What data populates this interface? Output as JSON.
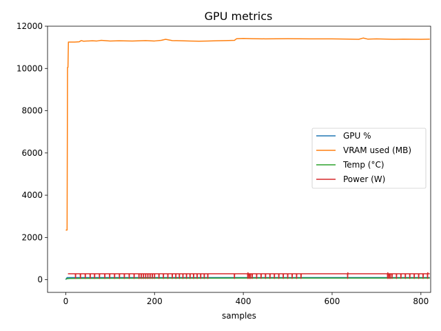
{
  "chart_data": {
    "type": "line",
    "title": "GPU metrics",
    "xlabel": "samples",
    "ylabel": "",
    "xlim": [
      -41,
      822
    ],
    "ylim": [
      -600,
      12000
    ],
    "xticks": [
      0,
      200,
      400,
      600,
      800
    ],
    "yticks": [
      0,
      2000,
      4000,
      6000,
      8000,
      10000,
      12000
    ],
    "grid": false,
    "legend_position": "center-right",
    "series": [
      {
        "name": "GPU %",
        "color": "#1f77b4",
        "points": [
          [
            0,
            0
          ],
          [
            3,
            100
          ],
          [
            820,
            100
          ]
        ]
      },
      {
        "name": "VRAM used (MB)",
        "color": "#ff7f0e",
        "points": [
          [
            0,
            2350
          ],
          [
            3,
            2350
          ],
          [
            4,
            10050
          ],
          [
            5,
            10050
          ],
          [
            6,
            11250
          ],
          [
            20,
            11250
          ],
          [
            30,
            11260
          ],
          [
            35,
            11320
          ],
          [
            40,
            11290
          ],
          [
            60,
            11310
          ],
          [
            70,
            11300
          ],
          [
            80,
            11330
          ],
          [
            100,
            11300
          ],
          [
            120,
            11310
          ],
          [
            150,
            11300
          ],
          [
            180,
            11320
          ],
          [
            200,
            11300
          ],
          [
            215,
            11330
          ],
          [
            225,
            11380
          ],
          [
            240,
            11320
          ],
          [
            260,
            11310
          ],
          [
            280,
            11300
          ],
          [
            300,
            11290
          ],
          [
            320,
            11300
          ],
          [
            340,
            11310
          ],
          [
            360,
            11320
          ],
          [
            380,
            11330
          ],
          [
            385,
            11410
          ],
          [
            400,
            11420
          ],
          [
            420,
            11410
          ],
          [
            450,
            11400
          ],
          [
            500,
            11410
          ],
          [
            550,
            11400
          ],
          [
            600,
            11400
          ],
          [
            640,
            11390
          ],
          [
            660,
            11380
          ],
          [
            670,
            11440
          ],
          [
            680,
            11390
          ],
          [
            700,
            11400
          ],
          [
            740,
            11380
          ],
          [
            760,
            11390
          ],
          [
            800,
            11380
          ],
          [
            820,
            11390
          ]
        ]
      },
      {
        "name": "Temp (°C)",
        "color": "#2ca02c",
        "points": [
          [
            0,
            40
          ],
          [
            10,
            60
          ],
          [
            40,
            65
          ],
          [
            100,
            70
          ],
          [
            200,
            72
          ],
          [
            300,
            75
          ],
          [
            400,
            78
          ],
          [
            500,
            78
          ],
          [
            600,
            76
          ],
          [
            700,
            77
          ],
          [
            820,
            78
          ]
        ]
      },
      {
        "name": "Power (W)",
        "color": "#d62728",
        "base": 280,
        "dip": 60,
        "start": 5,
        "end": 820,
        "dips_at": [
          22,
          33,
          44,
          55,
          65,
          76,
          88,
          99,
          110,
          121,
          132,
          143,
          154,
          165,
          170,
          175,
          180,
          185,
          190,
          195,
          200,
          210,
          220,
          230,
          240,
          248,
          256,
          264,
          272,
          280,
          288,
          296,
          304,
          312,
          320,
          380,
          410,
          413,
          416,
          420,
          430,
          440,
          450,
          460,
          470,
          480,
          490,
          500,
          510,
          520,
          530,
          635,
          725,
          728,
          731,
          735,
          745,
          755,
          765,
          775,
          785,
          795,
          805,
          815
        ],
        "spikes_at": [
          410,
          635,
          725,
          815
        ],
        "spike_value": 330
      }
    ]
  }
}
